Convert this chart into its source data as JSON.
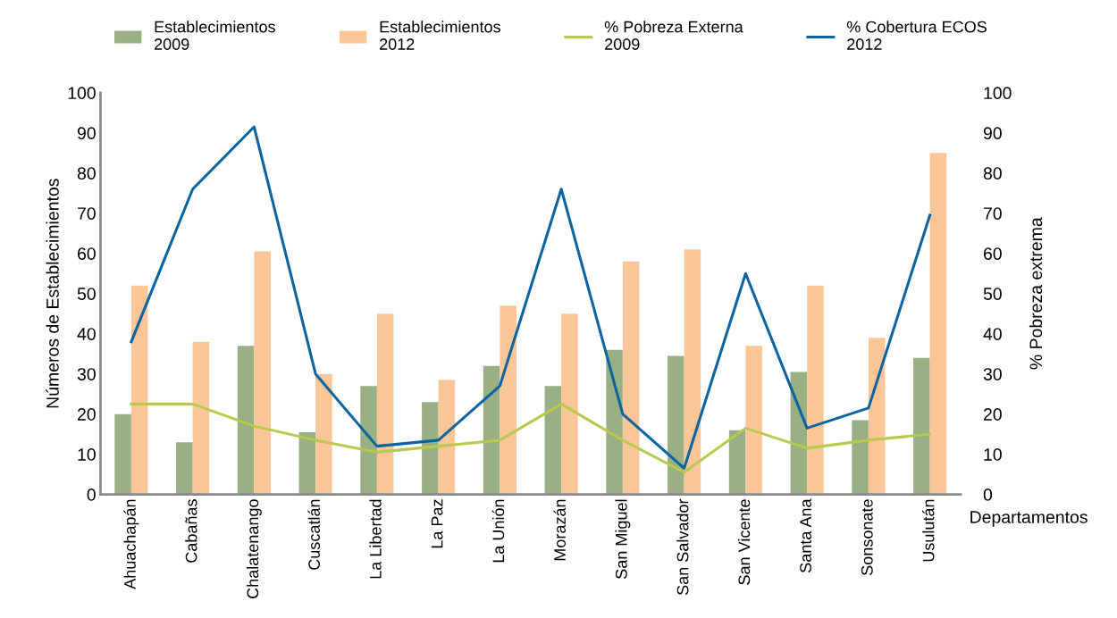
{
  "chart_data": {
    "type": "bar",
    "categories": [
      "Ahuachapán",
      "Cabañas",
      "Chalatenango",
      "Cuscatlán",
      "La Libertad",
      "La Paz",
      "La Unión",
      "Morazán",
      "San Miguel",
      "San Salvador",
      "San Vicente",
      "Santa Ana",
      "Sonsonate",
      "Usulután"
    ],
    "series": [
      {
        "name": "Establecimientos\n2009",
        "color": "#98b083",
        "values": [
          20,
          13,
          37,
          15.5,
          27,
          23,
          32,
          27,
          36,
          34.5,
          16,
          30.5,
          18.5,
          34
        ]
      },
      {
        "name": "Establecimientos\n2012",
        "color": "#fac698",
        "values": [
          52,
          38,
          60.5,
          30,
          45,
          28.5,
          47,
          45,
          58,
          61,
          37,
          52,
          39,
          85
        ]
      },
      {
        "name": "% Pobreza Externa\n2009",
        "color": "#b9c94e",
        "type": "line",
        "values": [
          22.5,
          22.5,
          17,
          13.5,
          10.5,
          12,
          13.5,
          22.5,
          13.5,
          5.5,
          16.5,
          11.5,
          13.5,
          15
        ]
      },
      {
        "name": "% Cobertura ECOS\n2012",
        "color": "#0b63a0",
        "type": "line",
        "values": [
          38,
          76,
          91.5,
          30,
          12,
          13.5,
          27,
          76,
          20,
          6.5,
          55,
          16.5,
          21.5,
          69.5
        ]
      }
    ],
    "xlabel": "Departamentos",
    "ylabel": "Números de Establecimientos",
    "y2label": "% Pobreza extrema",
    "ylim": [
      0,
      100
    ],
    "yticks": [
      0,
      10,
      20,
      30,
      40,
      50,
      60,
      70,
      80,
      90,
      100
    ],
    "y2lim": [
      0,
      100
    ],
    "y2ticks": [
      0,
      10,
      20,
      30,
      40,
      50,
      60,
      70,
      80,
      90,
      100
    ],
    "grid": false,
    "legend": "top",
    "marker": "none",
    "line_style": "solid"
  }
}
